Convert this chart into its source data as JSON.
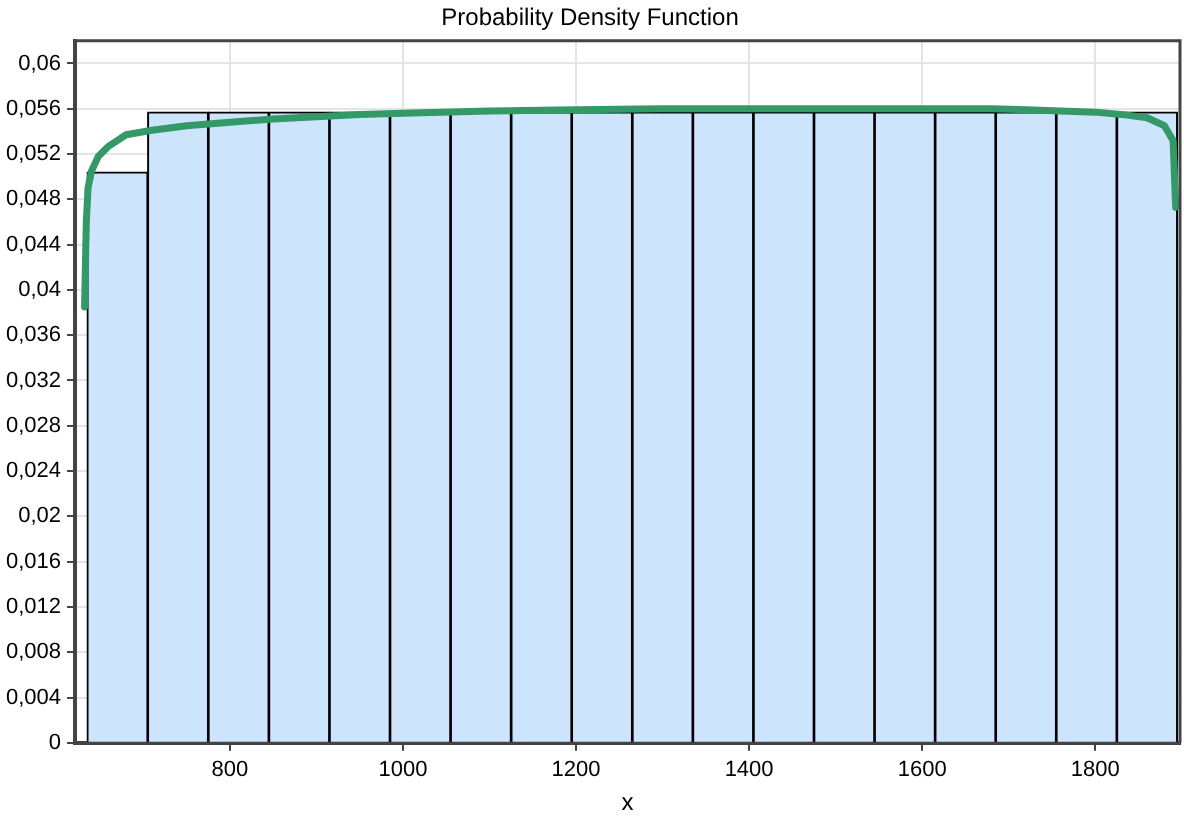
{
  "chart_data": {
    "type": "histogram",
    "title": "Probability Density Function",
    "xlabel": "x",
    "series": [
      {
        "color": "#cce5fc",
        "bins": [
          635,
          705,
          775,
          845,
          915,
          985,
          1055,
          1125,
          1195,
          1265,
          1335,
          1405,
          1475,
          1545,
          1615,
          1685,
          1755,
          1825,
          1895
        ],
        "values": [
          0.0504,
          0.0557,
          0.0557,
          0.0557,
          0.0557,
          0.0557,
          0.0557,
          0.0557,
          0.0557,
          0.0557,
          0.0557,
          0.0557,
          0.0557,
          0.0557,
          0.0557,
          0.0557,
          0.0557,
          0.0557
        ]
      },
      {
        "type": "line",
        "color": "#339966",
        "x": [
          632,
          634,
          636,
          640,
          648,
          660,
          680,
          710,
          750,
          800,
          850,
          900,
          950,
          1000,
          1100,
          1200,
          1300,
          1400,
          1500,
          1600,
          1680,
          1720,
          1760,
          1800,
          1830,
          1860,
          1880,
          1890,
          1893
        ],
        "values": [
          0.0385,
          0.046,
          0.049,
          0.0505,
          0.0518,
          0.0527,
          0.0537,
          0.0541,
          0.0545,
          0.0548,
          0.0551,
          0.0553,
          0.0555,
          0.0556,
          0.0558,
          0.0559,
          0.056,
          0.056,
          0.056,
          0.056,
          0.056,
          0.0559,
          0.0558,
          0.0557,
          0.0555,
          0.0552,
          0.0545,
          0.0532,
          0.0473
        ]
      }
    ],
    "xlim": [
      621,
      1898
    ],
    "xticks": [
      800,
      1000,
      1200,
      1400,
      1600,
      1800
    ],
    "ylim": [
      0,
      0.062
    ],
    "yticks": [
      0,
      {
        "value": 0.004,
        "label": "0,004"
      },
      {
        "value": 0.008,
        "label": "0,008"
      },
      {
        "value": 0.012,
        "label": "0,012"
      },
      {
        "value": 0.016,
        "label": "0,016"
      },
      {
        "value": 0.02,
        "label": "0,02"
      },
      {
        "value": 0.024,
        "label": "0,024"
      },
      {
        "value": 0.028,
        "label": "0,028"
      },
      {
        "value": 0.032,
        "label": "0,032"
      },
      {
        "value": 0.036,
        "label": "0,036"
      },
      {
        "value": 0.04,
        "label": "0,04"
      },
      {
        "value": 0.044,
        "label": "0,044"
      },
      {
        "value": 0.048,
        "label": "0,048"
      },
      {
        "value": 0.052,
        "label": "0,052"
      },
      {
        "value": 0.056,
        "label": "0,056"
      },
      {
        "value": 0.06,
        "label": "0,06"
      }
    ],
    "grid": true,
    "legend": false
  }
}
